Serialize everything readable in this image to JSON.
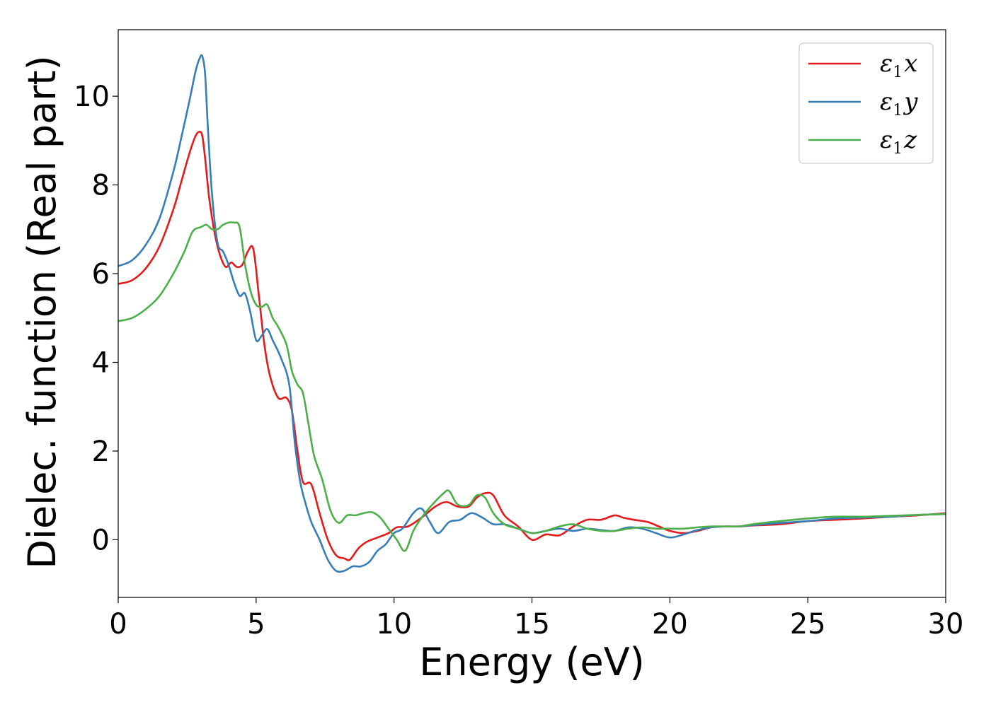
{
  "chart_data": {
    "type": "line",
    "title": "",
    "xlabel": "Energy (eV)",
    "ylabel": "Dielec. function (Real part)",
    "xlim": [
      0,
      30
    ],
    "ylim": [
      -1.3,
      11.5
    ],
    "xticks": [
      0,
      5,
      10,
      15,
      20,
      25,
      30
    ],
    "yticks": [
      0,
      2,
      4,
      6,
      8,
      10
    ],
    "grid": false,
    "legend_position": "top-right",
    "series": [
      {
        "name": "ε1x",
        "symbol": "ε",
        "subscript": "1",
        "component": "x",
        "color": "#e41a1c",
        "x": [
          0,
          0.5,
          1.0,
          1.5,
          2.0,
          2.3,
          2.6,
          2.8,
          2.95,
          3.05,
          3.15,
          3.3,
          3.5,
          3.7,
          3.9,
          4.1,
          4.3,
          4.5,
          4.7,
          4.9,
          5.1,
          5.3,
          5.5,
          5.8,
          6.1,
          6.3,
          6.5,
          6.7,
          7.0,
          7.3,
          7.6,
          7.9,
          8.2,
          8.4,
          8.7,
          9.0,
          9.4,
          9.8,
          10.1,
          10.5,
          11.0,
          11.5,
          11.9,
          12.3,
          12.7,
          13.0,
          13.3,
          13.6,
          14.0,
          14.5,
          15.0,
          15.5,
          16.0,
          16.5,
          17.0,
          17.5,
          18.0,
          18.3,
          18.7,
          19.2,
          19.6,
          20.0,
          20.5,
          21.0,
          21.5,
          22.0,
          22.5,
          23.0,
          24.0,
          25.0,
          26.0,
          27.0,
          28.0,
          29.0,
          30.0
        ],
        "y": [
          5.77,
          5.85,
          6.12,
          6.62,
          7.45,
          8.1,
          8.75,
          9.1,
          9.2,
          9.1,
          8.6,
          7.7,
          6.9,
          6.4,
          6.15,
          6.25,
          6.15,
          6.2,
          6.5,
          6.55,
          5.5,
          4.4,
          3.7,
          3.2,
          3.2,
          2.9,
          2.0,
          1.3,
          1.25,
          0.6,
          0.0,
          -0.35,
          -0.42,
          -0.45,
          -0.2,
          -0.05,
          0.05,
          0.15,
          0.28,
          0.3,
          0.5,
          0.75,
          0.85,
          0.75,
          0.75,
          0.95,
          1.05,
          1.0,
          0.55,
          0.3,
          0.0,
          0.12,
          0.1,
          0.3,
          0.45,
          0.45,
          0.55,
          0.5,
          0.45,
          0.4,
          0.3,
          0.2,
          0.15,
          0.2,
          0.28,
          0.3,
          0.3,
          0.32,
          0.35,
          0.42,
          0.45,
          0.48,
          0.52,
          0.55,
          0.6
        ]
      },
      {
        "name": "ε1y",
        "symbol": "ε",
        "subscript": "1",
        "component": "y",
        "color": "#377eb8",
        "x": [
          0,
          0.5,
          1.0,
          1.5,
          2.0,
          2.3,
          2.6,
          2.8,
          2.95,
          3.05,
          3.15,
          3.25,
          3.4,
          3.6,
          3.8,
          4.0,
          4.2,
          4.4,
          4.6,
          4.8,
          5.0,
          5.2,
          5.4,
          5.6,
          5.9,
          6.2,
          6.4,
          6.6,
          6.8,
          7.0,
          7.3,
          7.6,
          7.9,
          8.2,
          8.5,
          8.8,
          9.1,
          9.4,
          9.7,
          10.0,
          10.3,
          10.7,
          11.0,
          11.3,
          11.6,
          12.0,
          12.4,
          12.8,
          13.2,
          13.6,
          14.0,
          14.5,
          15.0,
          15.5,
          16.0,
          16.5,
          17.0,
          17.5,
          18.0,
          18.5,
          19.0,
          19.5,
          20.0,
          20.5,
          21.0,
          21.5,
          22.0,
          22.5,
          23.0,
          24.0,
          25.0,
          26.0,
          27.0,
          28.0,
          29.0,
          30.0
        ],
        "y": [
          6.17,
          6.3,
          6.65,
          7.25,
          8.3,
          9.1,
          9.95,
          10.55,
          10.85,
          10.9,
          10.5,
          9.3,
          7.8,
          6.7,
          6.5,
          6.2,
          5.8,
          5.5,
          5.55,
          5.1,
          4.5,
          4.6,
          4.75,
          4.5,
          4.1,
          3.5,
          2.2,
          1.3,
          0.8,
          0.4,
          0.0,
          -0.45,
          -0.7,
          -0.7,
          -0.6,
          -0.6,
          -0.5,
          -0.25,
          -0.1,
          0.15,
          0.25,
          0.6,
          0.7,
          0.4,
          0.15,
          0.4,
          0.45,
          0.6,
          0.5,
          0.35,
          0.35,
          0.25,
          0.15,
          0.2,
          0.25,
          0.2,
          0.25,
          0.22,
          0.2,
          0.28,
          0.25,
          0.15,
          0.05,
          0.12,
          0.22,
          0.28,
          0.3,
          0.3,
          0.33,
          0.38,
          0.42,
          0.48,
          0.5,
          0.52,
          0.56,
          0.58
        ]
      },
      {
        "name": "ε1z",
        "symbol": "ε",
        "subscript": "1",
        "component": "z",
        "color": "#4daf4a",
        "x": [
          0,
          0.5,
          1.0,
          1.5,
          2.0,
          2.4,
          2.7,
          3.0,
          3.2,
          3.4,
          3.6,
          3.8,
          4.0,
          4.2,
          4.4,
          4.6,
          4.8,
          5.0,
          5.2,
          5.4,
          5.6,
          5.8,
          6.1,
          6.3,
          6.5,
          6.7,
          6.9,
          7.1,
          7.4,
          7.7,
          8.0,
          8.3,
          8.6,
          8.9,
          9.2,
          9.5,
          9.8,
          10.1,
          10.4,
          10.7,
          11.0,
          11.4,
          11.8,
          12.0,
          12.3,
          12.7,
          13.0,
          13.3,
          13.6,
          14.0,
          14.5,
          15.0,
          15.5,
          16.0,
          16.5,
          17.0,
          17.5,
          18.0,
          18.5,
          19.0,
          19.5,
          20.0,
          20.5,
          21.0,
          21.5,
          22.0,
          22.5,
          23.0,
          24.0,
          25.0,
          26.0,
          27.0,
          28.0,
          29.0,
          30.0
        ],
        "y": [
          4.93,
          5.0,
          5.2,
          5.5,
          6.0,
          6.5,
          6.95,
          7.05,
          7.1,
          7.0,
          7.0,
          7.1,
          7.15,
          7.15,
          7.05,
          6.2,
          5.6,
          5.3,
          5.25,
          5.3,
          5.0,
          4.8,
          4.4,
          3.8,
          3.5,
          3.3,
          2.6,
          1.9,
          1.35,
          0.65,
          0.38,
          0.55,
          0.55,
          0.6,
          0.62,
          0.5,
          0.25,
          0.0,
          -0.25,
          0.2,
          0.5,
          0.8,
          1.05,
          1.1,
          0.8,
          0.78,
          1.0,
          0.95,
          0.6,
          0.35,
          0.25,
          0.15,
          0.2,
          0.3,
          0.35,
          0.25,
          0.2,
          0.2,
          0.25,
          0.28,
          0.25,
          0.25,
          0.25,
          0.28,
          0.3,
          0.3,
          0.3,
          0.35,
          0.42,
          0.48,
          0.52,
          0.52,
          0.54,
          0.56,
          0.58
        ]
      }
    ]
  }
}
